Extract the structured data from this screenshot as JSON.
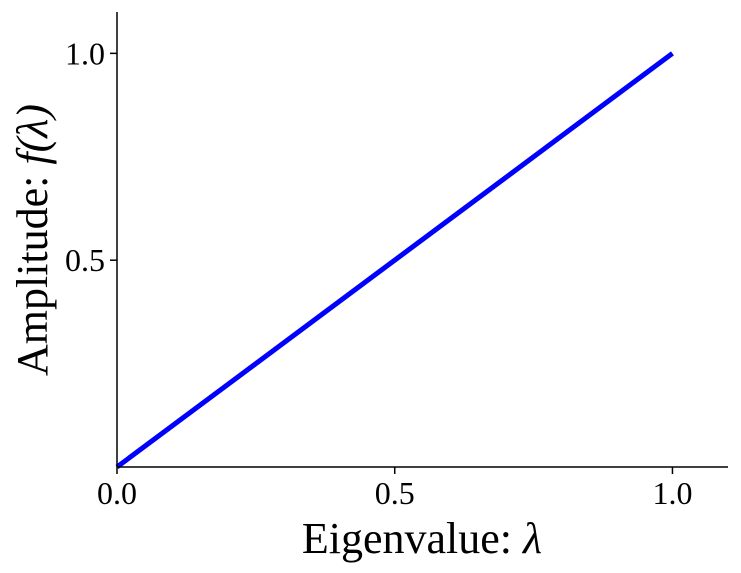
{
  "chart_data": {
    "type": "line",
    "xlabel": "Eigenvalue: λ",
    "ylabel": "Amplitude: f(λ)",
    "xlabel_text": "Eigenvalue: ",
    "xlabel_symbol": "λ",
    "ylabel_text": "Amplitude: ",
    "ylabel_symbol": "f(λ)",
    "xlim": [
      0.0,
      1.1
    ],
    "ylim": [
      0.0,
      1.1
    ],
    "x_ticks": [
      0.0,
      0.5,
      1.0
    ],
    "x_tick_labels": [
      "0.0",
      "0.5",
      "1.0"
    ],
    "y_ticks": [
      0.5,
      1.0
    ],
    "y_tick_labels": [
      "0.5",
      "1.0"
    ],
    "grid": false,
    "spines": [
      "left",
      "bottom"
    ],
    "series": [
      {
        "color": "#0000ff",
        "x": [
          0.0,
          1.0
        ],
        "y": [
          0.0,
          1.0
        ]
      }
    ]
  }
}
